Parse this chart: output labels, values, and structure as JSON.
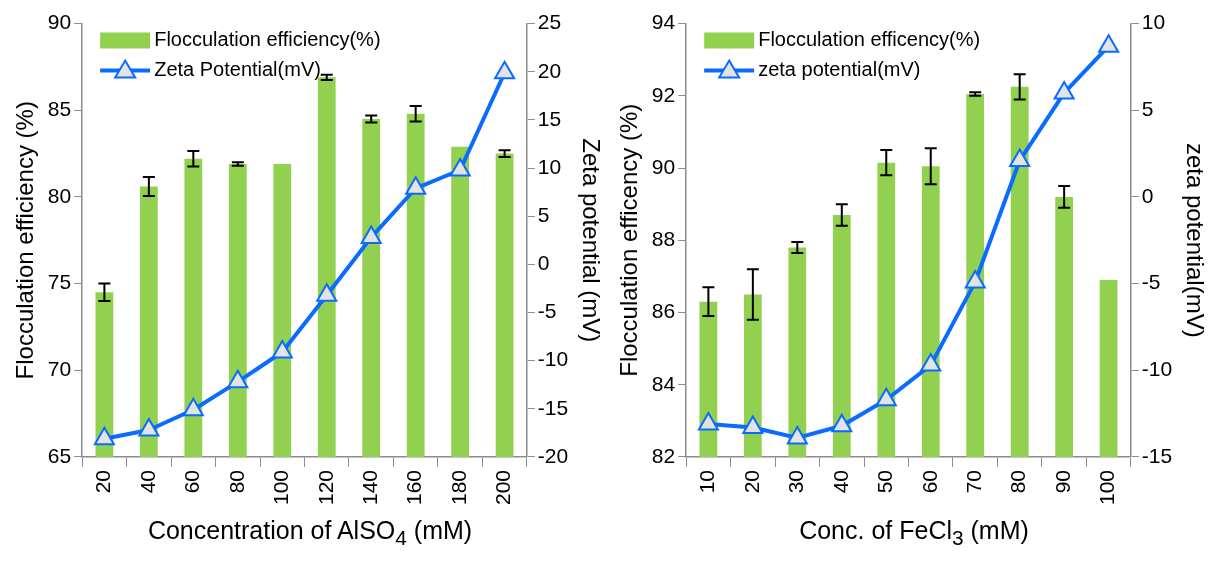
{
  "chart_data": [
    {
      "type": "bar",
      "xlabel": "Concentration of AlSO$_{4}$ (mM)",
      "ylabel": "Flocculation efficiency (%)",
      "y2label": "Zeta potential (mV)",
      "categories": [
        "20",
        "40",
        "60",
        "80",
        "100",
        "120",
        "140",
        "160",
        "180",
        "200"
      ],
      "series": [
        {
          "name": "Flocculation efficiency(%)",
          "color": "#92d050",
          "values": [
            74.5,
            80.6,
            82.2,
            81.9,
            81.9,
            86.9,
            84.5,
            84.8,
            82.9,
            82.5
          ],
          "errors": [
            0.5,
            0.55,
            0.45,
            0.1,
            null,
            0.15,
            0.2,
            0.45,
            null,
            0.2
          ]
        },
        {
          "name": "Zeta Potential(mV)",
          "type": "line",
          "axis": "y2",
          "color": "#0a6cff",
          "marker": "triangle",
          "values": [
            -18.1,
            -17.2,
            -15.1,
            -12.2,
            -9.1,
            -3.2,
            2.8,
            7.9,
            9.8,
            19.9
          ]
        }
      ],
      "ylim": [
        65,
        90
      ],
      "yticks": [
        65,
        70,
        75,
        80,
        85,
        90
      ],
      "y2lim": [
        -20,
        25
      ],
      "y2ticks": [
        -20,
        -15,
        -10,
        -5,
        0,
        5,
        10,
        15,
        20,
        25
      ],
      "legend": "top left",
      "grid": false
    },
    {
      "type": "bar",
      "xlabel": "Conc. of FeCl$_{3}$ (mM)",
      "ylabel": "Flocculation efficency (%)",
      "y2label": "zeta potential(mV)",
      "categories": [
        "10",
        "20",
        "30",
        "40",
        "50",
        "60",
        "70",
        "80",
        "90",
        "100"
      ],
      "series": [
        {
          "name": "Flocculation efficency(%)",
          "color": "#92d050",
          "values": [
            86.3,
            86.5,
            87.8,
            88.7,
            90.15,
            90.05,
            92.05,
            92.25,
            89.2,
            86.9
          ],
          "errors": [
            0.4,
            0.7,
            0.15,
            0.3,
            0.35,
            0.5,
            0.05,
            0.35,
            0.3,
            null
          ]
        },
        {
          "name": "zeta potential(mV)",
          "type": "line",
          "axis": "y2",
          "color": "#0a6cff",
          "marker": "triangle",
          "values": [
            -13.1,
            -13.3,
            -13.9,
            -13.2,
            -11.7,
            -9.7,
            -4.9,
            2.1,
            6.0,
            8.7
          ]
        }
      ],
      "ylim": [
        82,
        94
      ],
      "yticks": [
        82,
        84,
        86,
        88,
        90,
        92,
        94
      ],
      "y2lim": [
        -15,
        10
      ],
      "y2ticks": [
        -15,
        -10,
        -5,
        0,
        5,
        10
      ],
      "legend": "top left",
      "grid": false
    }
  ]
}
